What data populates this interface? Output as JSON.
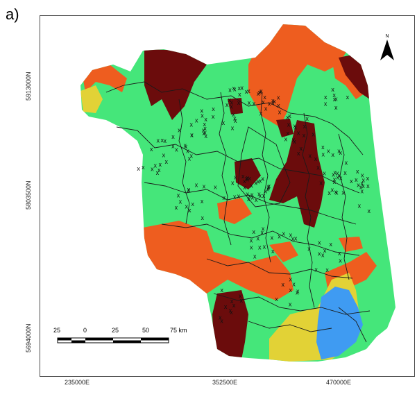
{
  "panel_label": "a)",
  "y_ticks": [
    "5913000N",
    "5803500N",
    "5694000N"
  ],
  "x_ticks": [
    "235000E",
    "352500E",
    "470000E"
  ],
  "north_label": "N",
  "scale_bar": {
    "labels": [
      "25",
      "0",
      "25",
      "50",
      "75 km"
    ]
  },
  "colors": {
    "green": "#45e67a",
    "orange": "#ee5d1f",
    "darkred": "#6b0c0c",
    "yellow": "#e2d236",
    "blue": "#3f9bf2"
  },
  "marker_symbol": "x",
  "icons": [
    "north-arrow-icon"
  ]
}
